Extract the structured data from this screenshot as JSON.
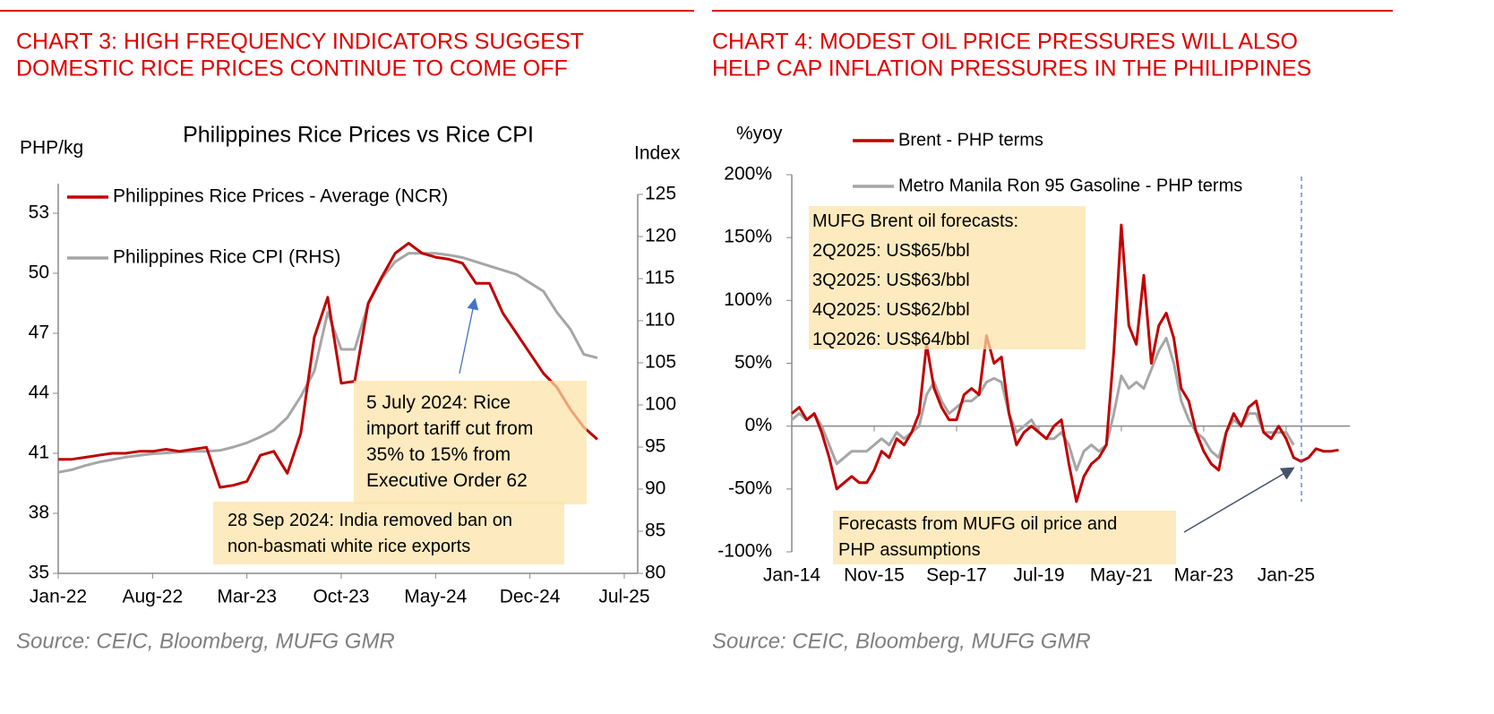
{
  "chart_data": [
    {
      "type": "line",
      "heading": [
        "CHART 3: HIGH FREQUENCY INDICATORS SUGGEST",
        "DOMESTIC RICE PRICES CONTINUE TO COME OFF"
      ],
      "title": "Philippines Rice Prices vs Rice CPI",
      "ylabel": "PHP/kg",
      "y2label": "Index",
      "x": [
        "2022-01",
        "2022-02",
        "2022-03",
        "2022-04",
        "2022-05",
        "2022-06",
        "2022-07",
        "2022-08",
        "2022-09",
        "2022-10",
        "2022-11",
        "2022-12",
        "2023-01",
        "2023-02",
        "2023-03",
        "2023-04",
        "2023-05",
        "2023-06",
        "2023-07",
        "2023-08",
        "2023-09",
        "2023-10",
        "2023-11",
        "2023-12",
        "2024-01",
        "2024-02",
        "2024-03",
        "2024-04",
        "2024-05",
        "2024-06",
        "2024-07",
        "2024-08",
        "2024-09",
        "2024-10",
        "2024-11",
        "2024-12",
        "2025-01",
        "2025-02",
        "2025-03",
        "2025-04",
        "2025-05"
      ],
      "xlim": [
        "2022-01",
        "2025-08"
      ],
      "xticks": [
        {
          "value": "2022-01",
          "label": "Jan-22"
        },
        {
          "value": "2022-08",
          "label": "Aug-22"
        },
        {
          "value": "2023-03",
          "label": "Mar-23"
        },
        {
          "value": "2023-10",
          "label": "Oct-23"
        },
        {
          "value": "2024-05",
          "label": "May-24"
        },
        {
          "value": "2024-12",
          "label": "Dec-24"
        },
        {
          "value": "2025-07",
          "label": "Jul-25"
        }
      ],
      "ylim": [
        35,
        53
      ],
      "yticks": [
        35,
        38,
        41,
        44,
        47,
        50,
        53
      ],
      "y2lim": [
        80,
        125
      ],
      "y2ticks": [
        80,
        85,
        90,
        95,
        100,
        105,
        110,
        115,
        120,
        125
      ],
      "grid": false,
      "legend": "upper left",
      "series": [
        {
          "name": "Philippines Rice Prices - Average (NCR)",
          "color": "#c00000",
          "values": [
            40.7,
            40.7,
            40.8,
            40.9,
            41.0,
            41.0,
            41.1,
            41.1,
            41.2,
            41.1,
            41.2,
            41.3,
            39.3,
            39.4,
            39.6,
            40.9,
            41.1,
            40.0,
            42.0,
            46.8,
            48.8,
            44.5,
            44.6,
            48.5,
            49.8,
            51.0,
            51.5,
            51.0,
            50.8,
            50.7,
            50.5,
            49.5,
            49.5,
            48.0,
            47.0,
            46.0,
            45.0,
            44.3,
            43.2,
            42.3,
            41.7
          ]
        },
        {
          "name": "Philippines Rice CPI (RHS)",
          "color": "#a6a6a6",
          "axis": "y2",
          "values": [
            92.0,
            92.3,
            92.8,
            93.2,
            93.5,
            93.8,
            94.0,
            94.2,
            94.3,
            94.4,
            94.5,
            94.5,
            94.6,
            95.0,
            95.5,
            96.2,
            97.0,
            98.5,
            101.0,
            104.0,
            111.0,
            106.6,
            106.6,
            112.0,
            115.0,
            117.0,
            118.0,
            118.0,
            118.0,
            117.8,
            117.5,
            117.0,
            116.5,
            116.0,
            115.5,
            114.5,
            113.5,
            111.0,
            109.0,
            106.0,
            105.6
          ]
        }
      ],
      "annotations": [
        [
          "5 July 2024: Rice",
          "import tariff cut from",
          "35% to 15% from",
          "Executive Order 62"
        ],
        [
          "28 Sep 2024: India removed ban on",
          "non-basmati white rice exports"
        ]
      ],
      "source": "Source: CEIC, Bloomberg, MUFG GMR"
    },
    {
      "type": "line",
      "heading": [
        "CHART 4: MODEST OIL PRICE PRESSURES WILL ALSO",
        "HELP CAP INFLATION PRESSURES IN THE PHILIPPINES"
      ],
      "ylabel": "%yoy",
      "x": [
        "2014-01",
        "2014-03",
        "2014-05",
        "2014-07",
        "2014-09",
        "2014-11",
        "2015-01",
        "2015-03",
        "2015-05",
        "2015-07",
        "2015-09",
        "2015-11",
        "2016-01",
        "2016-03",
        "2016-05",
        "2016-07",
        "2016-09",
        "2016-11",
        "2017-01",
        "2017-03",
        "2017-05",
        "2017-07",
        "2017-09",
        "2017-11",
        "2018-01",
        "2018-03",
        "2018-05",
        "2018-07",
        "2018-09",
        "2018-11",
        "2019-01",
        "2019-03",
        "2019-05",
        "2019-07",
        "2019-09",
        "2019-11",
        "2020-01",
        "2020-03",
        "2020-05",
        "2020-07",
        "2020-09",
        "2020-11",
        "2021-01",
        "2021-03",
        "2021-05",
        "2021-07",
        "2021-09",
        "2021-11",
        "2022-01",
        "2022-03",
        "2022-05",
        "2022-07",
        "2022-09",
        "2022-11",
        "2023-01",
        "2023-03",
        "2023-05",
        "2023-07",
        "2023-09",
        "2023-11",
        "2024-01",
        "2024-03",
        "2024-05",
        "2024-07",
        "2024-09",
        "2024-11",
        "2025-01",
        "2025-03",
        "2025-05",
        "2025-07",
        "2025-09",
        "2025-11",
        "2026-01",
        "2026-03"
      ],
      "xlim": [
        "2014-01",
        "2026-06"
      ],
      "xticks": [
        {
          "value": "2014-01",
          "label": "Jan-14"
        },
        {
          "value": "2015-11",
          "label": "Nov-15"
        },
        {
          "value": "2017-09",
          "label": "Sep-17"
        },
        {
          "value": "2019-07",
          "label": "Jul-19"
        },
        {
          "value": "2021-05",
          "label": "May-21"
        },
        {
          "value": "2023-03",
          "label": "Mar-23"
        },
        {
          "value": "2025-01",
          "label": "Jan-25"
        }
      ],
      "ylim": [
        -100,
        200
      ],
      "yticks": [
        {
          "value": -100,
          "label": "-100%"
        },
        {
          "value": -50,
          "label": "-50%"
        },
        {
          "value": 0,
          "label": "0%"
        },
        {
          "value": 50,
          "label": "50%"
        },
        {
          "value": 100,
          "label": "100%"
        },
        {
          "value": 150,
          "label": "150%"
        },
        {
          "value": 200,
          "label": "200%"
        }
      ],
      "grid": false,
      "legend": "upper left",
      "series": [
        {
          "name": "Brent - PHP terms",
          "color": "#c00000",
          "values": [
            10,
            15,
            5,
            10,
            -5,
            -25,
            -50,
            -45,
            -40,
            -45,
            -45,
            -35,
            -20,
            -25,
            -10,
            -15,
            -5,
            10,
            65,
            30,
            15,
            5,
            5,
            25,
            30,
            25,
            72,
            50,
            55,
            10,
            -15,
            -5,
            0,
            -5,
            -10,
            0,
            5,
            -30,
            -60,
            -40,
            -30,
            -25,
            -15,
            60,
            160,
            80,
            65,
            120,
            50,
            80,
            90,
            70,
            30,
            20,
            -5,
            -20,
            -30,
            -35,
            -5,
            10,
            0,
            15,
            20,
            -5,
            -10,
            0,
            -10,
            -25,
            -28,
            -25,
            -18,
            -20,
            -20,
            -19
          ]
        },
        {
          "name": "Metro Manila Ron 95 Gasoline - PHP terms",
          "color": "#a6a6a6",
          "values": [
            5,
            10,
            5,
            10,
            0,
            -15,
            -30,
            -25,
            -20,
            -20,
            -20,
            -15,
            -10,
            -15,
            -5,
            -10,
            -5,
            0,
            25,
            35,
            20,
            10,
            15,
            20,
            20,
            25,
            35,
            38,
            35,
            10,
            -5,
            0,
            5,
            -5,
            -10,
            -10,
            -5,
            -15,
            -35,
            -20,
            -15,
            -20,
            -15,
            10,
            40,
            30,
            35,
            30,
            45,
            60,
            70,
            50,
            20,
            5,
            -5,
            -10,
            -20,
            -25,
            -5,
            5,
            0,
            10,
            10,
            -5,
            -5,
            -5,
            -5,
            -15,
            null,
            null,
            null,
            null,
            null,
            null
          ]
        }
      ],
      "annotations": [
        [
          "MUFG Brent oil forecasts:",
          "2Q2025: US$65/bbl",
          "3Q2025: US$63/bbl",
          "4Q2025: US$62/bbl",
          "1Q2026: US$64/bbl"
        ],
        [
          "Forecasts from MUFG oil price and",
          "PHP assumptions"
        ]
      ],
      "source": "Source: CEIC, Bloomberg, MUFG GMR"
    }
  ]
}
